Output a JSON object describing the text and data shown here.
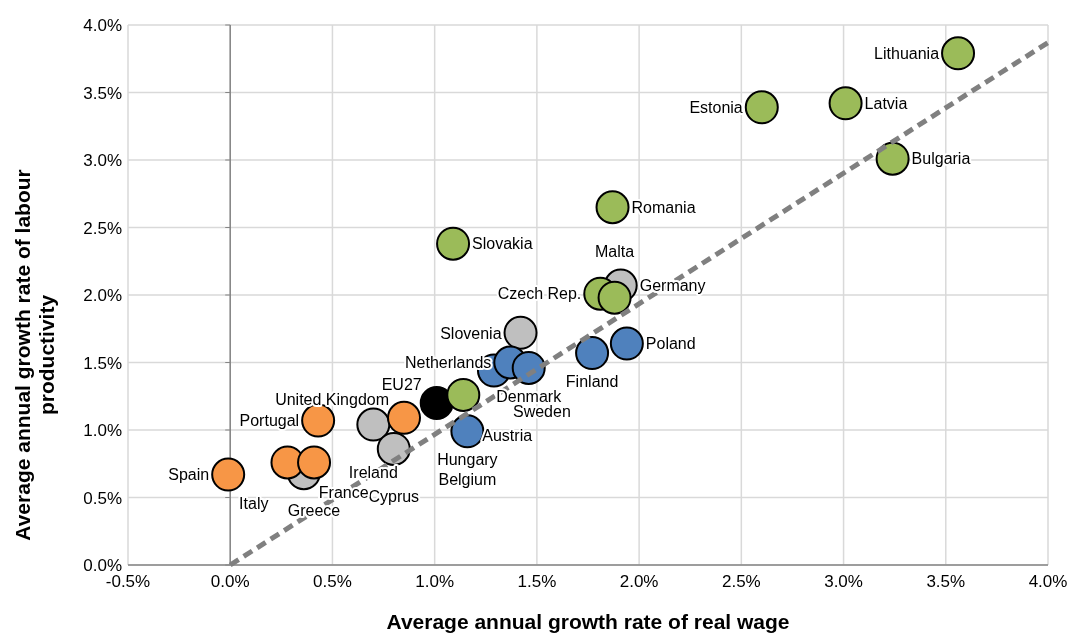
{
  "chart_data": {
    "type": "scatter",
    "xlabel": "Average annual growth rate of real wage",
    "ylabel": "Average annual growth rate of labour productivity",
    "xlim": [
      -0.5,
      4.0
    ],
    "ylim": [
      0,
      4.0
    ],
    "xticks": [
      {
        "value": -0.5,
        "label": "-0.5%"
      },
      {
        "value": 0,
        "label": "0.0%"
      },
      {
        "value": 0.5,
        "label": "0.5%"
      },
      {
        "value": 1,
        "label": "1.0%"
      },
      {
        "value": 1.5,
        "label": "1.5%"
      },
      {
        "value": 2,
        "label": "2.0%"
      },
      {
        "value": 2.5,
        "label": "2.5%"
      },
      {
        "value": 3,
        "label": "3.0%"
      },
      {
        "value": 3.5,
        "label": "3.5%"
      },
      {
        "value": 4,
        "label": "4.0%"
      }
    ],
    "yticks": [
      {
        "value": 0,
        "label": "0.0%"
      },
      {
        "value": 0.5,
        "label": "0.5%"
      },
      {
        "value": 1,
        "label": "1.0%"
      },
      {
        "value": 1.5,
        "label": "1.5%"
      },
      {
        "value": 2,
        "label": "2.0%"
      },
      {
        "value": 2.5,
        "label": "2.5%"
      },
      {
        "value": 3,
        "label": "3.0%"
      },
      {
        "value": 3.5,
        "label": "3.5%"
      },
      {
        "value": 4,
        "label": "4.0%"
      }
    ],
    "grid": true,
    "marker": "circle",
    "series": [
      {
        "type": "line",
        "color": "#808080",
        "line_style": "dashed",
        "marker": "none",
        "x": [
          0,
          4.0
        ],
        "values": [
          0,
          3.87
        ]
      },
      {
        "color": "#bfbfbf",
        "x": [
          1.91,
          1.42,
          0.36,
          0.7,
          0.8
        ],
        "values": [
          2.07,
          1.72,
          0.68,
          1.04,
          0.86
        ]
      },
      {
        "color": "#4f81bd",
        "x": [
          1.29,
          1.37,
          1.46,
          1.77,
          1.94,
          1.16
        ],
        "values": [
          1.44,
          1.5,
          1.46,
          1.57,
          1.64,
          0.99
        ]
      },
      {
        "color": "#f79646",
        "x": [
          -0.01,
          0.28,
          0.41,
          0.43,
          0.85
        ],
        "values": [
          0.67,
          0.76,
          0.76,
          1.07,
          1.09
        ]
      },
      {
        "color": "#000000",
        "x": [
          1.01
        ],
        "values": [
          1.2
        ]
      },
      {
        "color": "#9bbb59",
        "x": [
          3.56,
          2.6,
          3.01,
          3.24,
          1.87,
          1.09,
          1.81,
          1.88,
          1.14
        ],
        "values": [
          3.79,
          3.39,
          3.42,
          3.01,
          2.65,
          2.38,
          2.01,
          1.98,
          1.26
        ]
      }
    ],
    "annotations": [
      {
        "text": "Lithuania",
        "x": 3.56,
        "y": 3.79
      },
      {
        "text": "Estonia",
        "x": 2.6,
        "y": 3.39
      },
      {
        "text": "Latvia",
        "x": 3.01,
        "y": 3.42
      },
      {
        "text": "Bulgaria",
        "x": 3.24,
        "y": 3.01
      },
      {
        "text": "Romania",
        "x": 1.87,
        "y": 2.65
      },
      {
        "text": "Slovakia",
        "x": 1.09,
        "y": 2.38
      },
      {
        "text": "Malta",
        "x": 1.88,
        "y": 1.98
      },
      {
        "text": "Czech Rep.",
        "x": 1.81,
        "y": 2.01
      },
      {
        "text": "Germany",
        "x": 1.91,
        "y": 2.07
      },
      {
        "text": "Poland",
        "x": 1.94,
        "y": 1.64
      },
      {
        "text": "Finland",
        "x": 1.77,
        "y": 1.57
      },
      {
        "text": "Slovenia",
        "x": 1.42,
        "y": 1.72
      },
      {
        "text": "Sweden",
        "x": 1.29,
        "y": 1.44
      },
      {
        "text": "Netherlands",
        "x": 1.37,
        "y": 1.5
      },
      {
        "text": "Denmark",
        "x": 1.46,
        "y": 1.46
      },
      {
        "text": "Austria",
        "x": 1.14,
        "y": 1.26
      },
      {
        "text": "EU27",
        "x": 1.01,
        "y": 1.2
      },
      {
        "text": "Hungary",
        "x": 1.16,
        "y": 0.99
      },
      {
        "text": "Belgium",
        "x": 1.16,
        "y": 0.99
      },
      {
        "text": "United Kingdom",
        "x": 0.85,
        "y": 1.09
      },
      {
        "text": "Ireland",
        "x": 0.7,
        "y": 1.04
      },
      {
        "text": "Cyprus",
        "x": 0.8,
        "y": 0.86
      },
      {
        "text": "Portugal",
        "x": 0.43,
        "y": 1.07
      },
      {
        "text": "Greece",
        "x": 0.41,
        "y": 0.76
      },
      {
        "text": "Italy",
        "x": 0.28,
        "y": 0.76
      },
      {
        "text": "France",
        "x": 0.36,
        "y": 0.68
      },
      {
        "text": "Spain",
        "x": -0.01,
        "y": 0.67
      }
    ]
  }
}
